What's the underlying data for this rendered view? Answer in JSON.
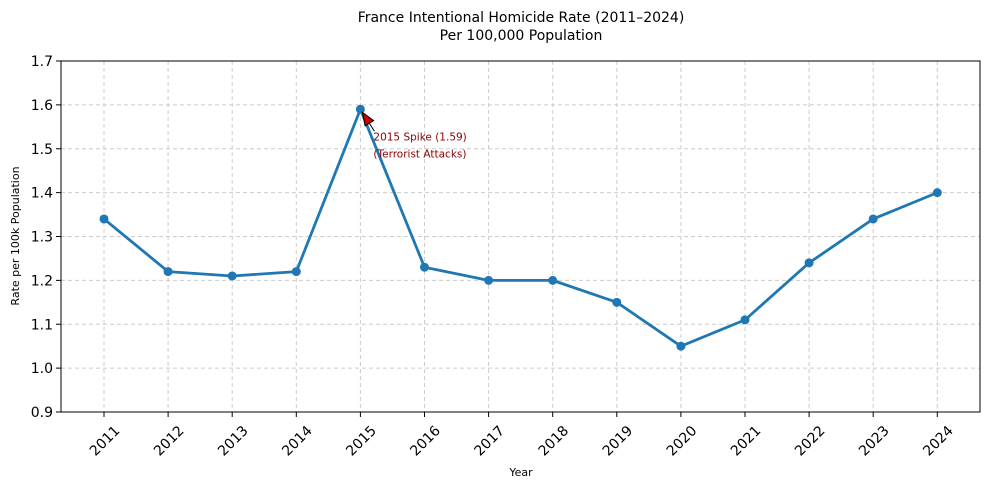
{
  "chart_data": {
    "type": "line",
    "title": "France Intentional Homicide Rate (2011–2024)",
    "subtitle": "Per 100,000 Population",
    "xlabel": "Year",
    "ylabel": "Rate per 100k Population",
    "ylim": [
      0.9,
      1.7
    ],
    "yticks": [
      "0.9",
      "1.0",
      "1.1",
      "1.2",
      "1.3",
      "1.4",
      "1.5",
      "1.6",
      "1.7"
    ],
    "categories": [
      "2011",
      "2012",
      "2013",
      "2014",
      "2015",
      "2016",
      "2017",
      "2018",
      "2019",
      "2020",
      "2021",
      "2022",
      "2023",
      "2024"
    ],
    "values": [
      1.34,
      1.22,
      1.21,
      1.22,
      1.59,
      1.23,
      1.2,
      1.2,
      1.15,
      1.05,
      1.11,
      1.24,
      1.34,
      1.4
    ],
    "grid": true,
    "line_color": "#1f77b4",
    "annotation": {
      "line1": "2015 Spike (1.59)",
      "line2": "(Terrorist Attacks)",
      "target_category": "2015",
      "target_value": 1.59,
      "color": "#8b0000",
      "arrow_color": "#cc0000"
    }
  }
}
